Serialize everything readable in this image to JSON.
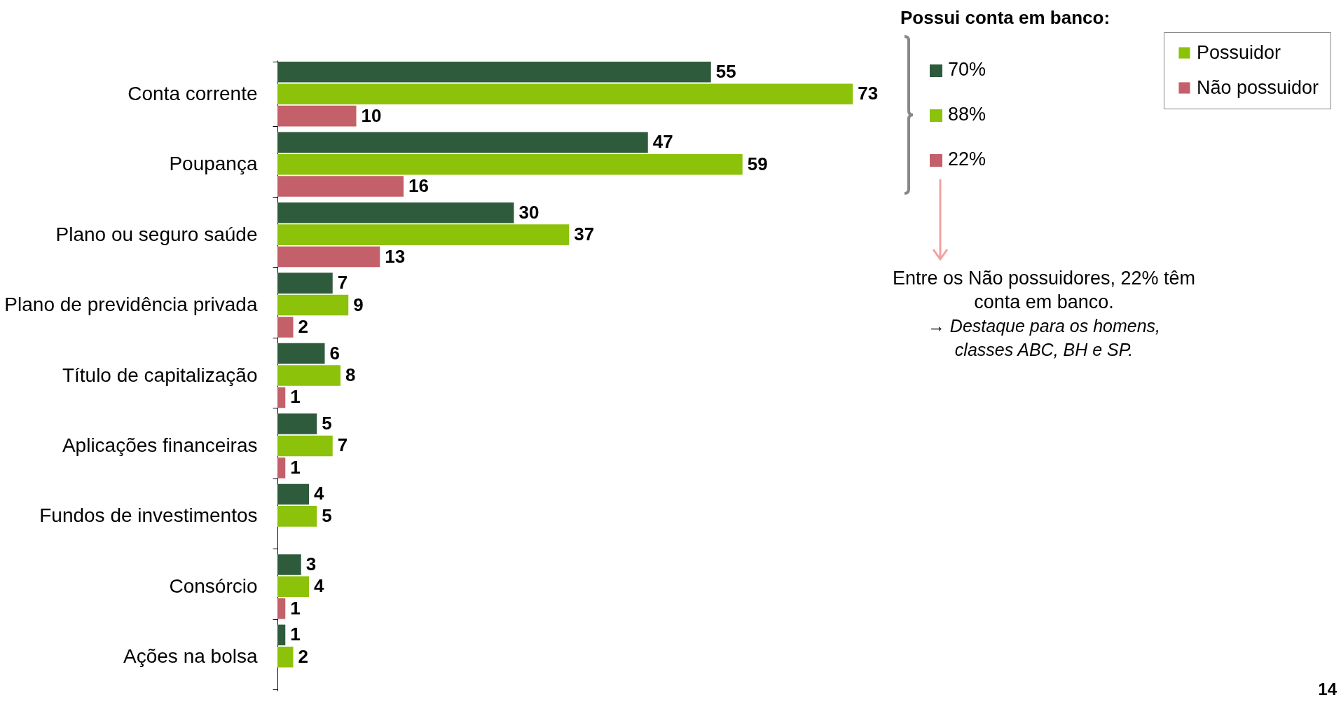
{
  "chart_data": {
    "type": "bar",
    "orientation": "horizontal",
    "categories": [
      "Conta corrente",
      "Poupança",
      "Plano ou seguro saúde",
      "Plano de previdência privada",
      "Título de capitalização",
      "Aplicações financeiras",
      "Fundos de investimentos",
      "Consórcio",
      "Ações na bolsa"
    ],
    "series": [
      {
        "color": "#2e5b3c",
        "values": [
          55,
          47,
          30,
          7,
          6,
          5,
          4,
          3,
          1
        ]
      },
      {
        "name": "Possuidor",
        "color": "#8cc20a",
        "values": [
          73,
          59,
          37,
          9,
          8,
          7,
          5,
          4,
          2
        ]
      },
      {
        "name": "Não possuidor",
        "color": "#c4606a",
        "values": [
          10,
          16,
          13,
          2,
          1,
          1,
          null,
          1,
          null
        ]
      }
    ],
    "data_labels": true,
    "legend": "top right",
    "annotations": [
      "Possui conta em banco:",
      "70%",
      "88%",
      "22%",
      "Entre os Não possuidores, 22% têm conta em banco.",
      "→ Destaque para os homens, classes ABC, BH e SP.",
      "14"
    ]
  }
}
